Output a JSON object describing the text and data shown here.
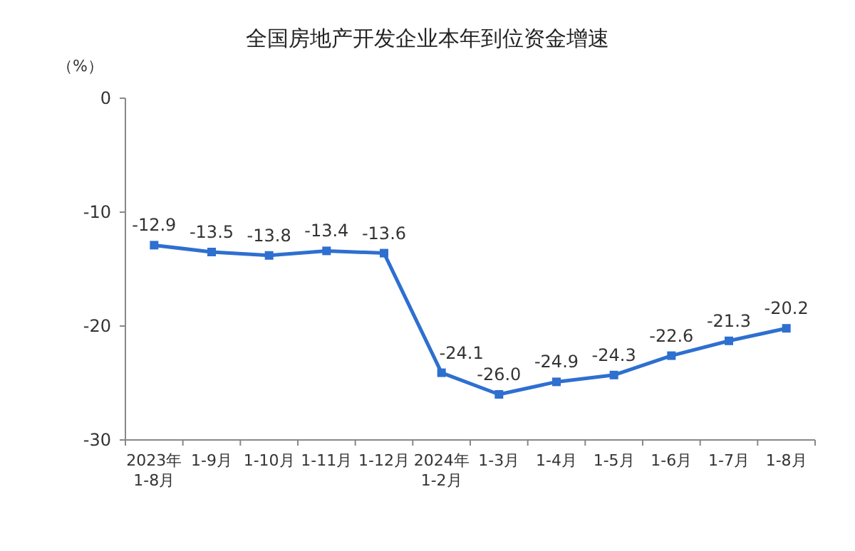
{
  "chart_data": {
    "type": "line",
    "title": "全国房地产开发企业本年到位资金增速",
    "ylabel": "（%）",
    "categories": [
      "2023年\n1-8月",
      "1-9月",
      "1-10月",
      "1-11月",
      "1-12月",
      "2024年\n1-2月",
      "1-3月",
      "1-4月",
      "1-5月",
      "1-6月",
      "1-7月",
      "1-8月"
    ],
    "series": [
      {
        "color": "#2e6fd0",
        "values": [
          -12.9,
          -13.5,
          -13.8,
          -13.4,
          -13.6,
          -24.1,
          -26.0,
          -24.9,
          -24.3,
          -22.6,
          -21.3,
          -20.2
        ],
        "value_labels": [
          "-12.9",
          "-13.5",
          "-13.8",
          "-13.4",
          "-13.6",
          "-24.1",
          "-26.0",
          "-24.9",
          "-24.3",
          "-22.6",
          "-21.3",
          "-20.2"
        ]
      }
    ],
    "ylim": [
      -30,
      0
    ],
    "yticks": [
      0,
      -10,
      -20,
      -30
    ],
    "marker": "square"
  }
}
